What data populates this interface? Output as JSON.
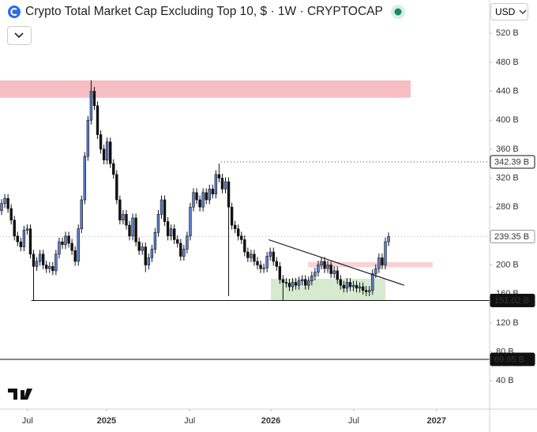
{
  "chart_data": {
    "type": "candlestick",
    "title": "Crypto Total Market Cap Excluding Top 10, $ · 1W · CRYPTOCAP",
    "currency": "USD",
    "up_color": "#5b7fd6",
    "down_color": "#111111",
    "open": [
      275,
      285,
      292,
      278,
      262,
      240,
      232,
      225,
      248,
      250,
      215,
      198,
      205,
      215,
      200,
      195,
      198,
      192,
      215,
      232,
      228,
      240,
      230,
      220,
      205,
      250,
      290,
      350,
      400,
      440,
      420,
      380,
      360,
      345,
      370,
      340,
      325,
      290,
      262,
      270,
      255,
      240,
      265,
      232,
      220,
      225,
      200,
      210,
      222,
      245,
      270,
      290,
      260,
      240,
      250,
      235,
      230,
      212,
      222,
      240,
      280,
      300,
      290,
      280,
      300,
      290,
      305,
      298,
      325,
      320,
      305,
      315,
      280,
      255,
      250,
      240,
      235,
      218,
      210,
      215,
      205,
      200,
      195,
      196,
      212,
      218,
      205,
      198,
      180,
      176,
      175,
      170,
      176,
      172,
      178,
      180,
      172,
      178,
      185,
      190,
      200,
      205,
      195,
      200,
      188,
      192,
      180,
      172,
      168,
      176,
      170,
      172,
      168,
      170,
      165,
      163,
      165,
      188,
      195,
      210,
      200,
      232
    ],
    "high": [
      291,
      298,
      298,
      284,
      268,
      246,
      238,
      254,
      256,
      256,
      221,
      211,
      221,
      221,
      206,
      204,
      204,
      221,
      238,
      238,
      246,
      246,
      236,
      226,
      256,
      296,
      356,
      406,
      455,
      446,
      426,
      386,
      366,
      376,
      376,
      346,
      331,
      296,
      276,
      276,
      261,
      271,
      271,
      238,
      231,
      231,
      216,
      228,
      251,
      276,
      296,
      296,
      266,
      256,
      256,
      241,
      236,
      228,
      246,
      286,
      306,
      306,
      296,
      306,
      306,
      311,
      311,
      331,
      340,
      326,
      321,
      321,
      286,
      261,
      256,
      246,
      241,
      224,
      221,
      221,
      211,
      206,
      202,
      218,
      224,
      224,
      211,
      204,
      186,
      182,
      181,
      182,
      182,
      184,
      186,
      186,
      184,
      191,
      196,
      206,
      211,
      211,
      206,
      206,
      198,
      198,
      186,
      178,
      182,
      182,
      178,
      178,
      176,
      176,
      171,
      171,
      194,
      201,
      216,
      216,
      238,
      245
    ],
    "low": [
      269,
      279,
      272,
      256,
      234,
      226,
      219,
      219,
      242,
      209,
      151,
      192,
      199,
      194,
      189,
      189,
      186,
      186,
      209,
      222,
      222,
      224,
      214,
      199,
      199,
      244,
      284,
      344,
      394,
      414,
      374,
      354,
      339,
      339,
      334,
      319,
      284,
      256,
      256,
      249,
      234,
      234,
      226,
      214,
      214,
      190,
      194,
      204,
      216,
      239,
      264,
      254,
      234,
      234,
      229,
      224,
      206,
      206,
      216,
      234,
      274,
      284,
      274,
      274,
      284,
      284,
      292,
      292,
      314,
      299,
      299,
      157,
      249,
      244,
      234,
      229,
      212,
      204,
      204,
      199,
      194,
      189,
      189,
      190,
      206,
      199,
      192,
      174,
      151,
      169,
      164,
      164,
      166,
      166,
      172,
      166,
      166,
      172,
      179,
      184,
      194,
      189,
      189,
      182,
      182,
      174,
      166,
      162,
      162,
      164,
      164,
      162,
      162,
      159,
      157,
      157,
      159,
      182,
      189,
      194,
      194,
      226
    ],
    "close": [
      285,
      292,
      278,
      262,
      240,
      232,
      225,
      248,
      250,
      215,
      198,
      205,
      215,
      200,
      195,
      198,
      192,
      215,
      232,
      228,
      240,
      230,
      220,
      205,
      250,
      290,
      350,
      400,
      440,
      420,
      380,
      360,
      345,
      370,
      340,
      325,
      290,
      262,
      270,
      255,
      240,
      265,
      232,
      220,
      225,
      200,
      210,
      222,
      245,
      270,
      290,
      260,
      240,
      250,
      235,
      230,
      212,
      222,
      240,
      280,
      300,
      290,
      280,
      300,
      290,
      305,
      298,
      325,
      320,
      305,
      315,
      280,
      255,
      250,
      240,
      235,
      218,
      210,
      215,
      205,
      200,
      195,
      196,
      212,
      218,
      205,
      198,
      180,
      176,
      175,
      170,
      176,
      172,
      178,
      180,
      172,
      178,
      185,
      190,
      200,
      205,
      195,
      200,
      188,
      192,
      180,
      172,
      168,
      176,
      170,
      172,
      168,
      170,
      165,
      163,
      165,
      188,
      195,
      210,
      200,
      232,
      239.35
    ],
    "xlim": [
      -0.5,
      152.6
    ],
    "ylim": [
      1,
      566
    ],
    "xticks": [
      {
        "value": 8.1,
        "label": "Jul"
      },
      {
        "value": 32.8,
        "label": "2025"
      },
      {
        "value": 58.8,
        "label": "Jul"
      },
      {
        "value": 84.2,
        "label": "2026"
      },
      {
        "value": 110.1,
        "label": "Jul"
      },
      {
        "value": 136,
        "label": "2027"
      }
    ],
    "yticks": [
      {
        "value": 40,
        "label": "40 B"
      },
      {
        "value": 80,
        "label": "80 B"
      },
      {
        "value": 120,
        "label": "120 B"
      },
      {
        "value": 160,
        "label": "160 B"
      },
      {
        "value": 200,
        "label": "200 B"
      },
      {
        "value": 280,
        "label": "280 B"
      },
      {
        "value": 320,
        "label": "320 B"
      },
      {
        "value": 360,
        "label": "360 B"
      },
      {
        "value": 400,
        "label": "400 B"
      },
      {
        "value": 440,
        "label": "440 B"
      },
      {
        "value": 480,
        "label": "480 B"
      },
      {
        "value": 520,
        "label": "520 B"
      }
    ],
    "grid": false,
    "price_labels": [
      {
        "value": 342.39,
        "label": "342.39 B"
      },
      {
        "value": 239.35,
        "label": "239.35 B"
      },
      {
        "value": 151.02,
        "label": "151.02 B"
      },
      {
        "value": 69.65,
        "label": "69.65 B"
      }
    ],
    "zones": [
      {
        "x": [
          -0.5,
          127.9
        ],
        "y": [
          431,
          455
        ],
        "color": "#f4b3b8"
      },
      {
        "x": [
          95.8,
          134.8
        ],
        "y": [
          197,
          204
        ],
        "color": "#f7c9cc"
      },
      {
        "x": [
          84.2,
          120
        ],
        "y": [
          151,
          181
        ],
        "color": "#cfe6c8"
      }
    ],
    "trendline": {
      "x": [
        83.5,
        125.9
      ],
      "y": [
        235,
        172
      ]
    }
  }
}
